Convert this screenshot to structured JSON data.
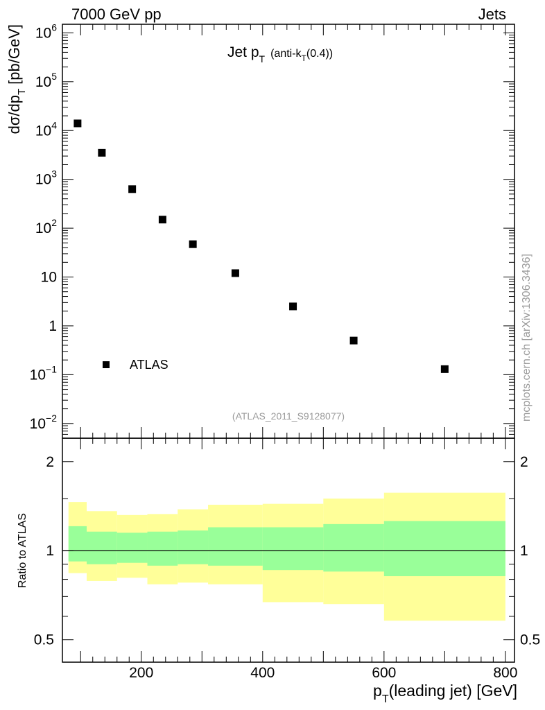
{
  "header": {
    "left": "7000 GeV pp",
    "right": "Jets"
  },
  "side_note": "mcplots.cern.ch [arXiv:1306.3436]",
  "chart_data": [
    {
      "type": "scatter",
      "title": "Jet p_T (anti-k_T(0.4))",
      "title_parts": {
        "main": "Jet p",
        "sub": "T",
        "extra": "(anti-k",
        "extra_sub": "T",
        "extra_end": "(0.4))"
      },
      "ylabel": "dσ/dp_T [pb/GeV]",
      "ylabel_parts": {
        "main": "dσ/dp",
        "sub": "T",
        "unit": "[pb/GeV]"
      },
      "yscale": "log",
      "ylim": [
        0.005,
        1500000
      ],
      "xlim": [
        70,
        815
      ],
      "y_ticks": [
        {
          "value": 1000000,
          "base": "10",
          "exp": "6"
        },
        {
          "value": 100000,
          "base": "10",
          "exp": "5"
        },
        {
          "value": 10000,
          "base": "10",
          "exp": "4"
        },
        {
          "value": 1000,
          "base": "10",
          "exp": "3"
        },
        {
          "value": 100,
          "base": "10",
          "exp": "2"
        },
        {
          "value": 10,
          "base": "10",
          "exp": ""
        },
        {
          "value": 1,
          "base": "1",
          "exp": ""
        },
        {
          "value": 0.1,
          "base": "10",
          "exp": "−1"
        },
        {
          "value": 0.01,
          "base": "10",
          "exp": "−2"
        }
      ],
      "series": [
        {
          "name": "ATLAS",
          "marker": "square",
          "color": "#000000",
          "x": [
            95,
            135,
            185,
            235,
            285,
            355,
            450,
            550,
            700
          ],
          "y": [
            14000,
            3500,
            630,
            150,
            47,
            12,
            2.5,
            0.5,
            0.13
          ]
        }
      ],
      "legend": {
        "label": "ATLAS",
        "position": "lower-left"
      },
      "annotation": "(ATLAS_2011_S9128077)"
    },
    {
      "type": "area",
      "ylabel": "Ratio to ATLAS",
      "yscale": "log",
      "ylim": [
        0.42,
        2.4
      ],
      "xlim": [
        70,
        815
      ],
      "xlabel": "p_T(leading jet) [GeV]",
      "xlabel_parts": {
        "main": "p",
        "sub": "T",
        "rest": "(leading jet) [GeV]"
      },
      "x_ticks": [
        "200",
        "400",
        "600",
        "800"
      ],
      "x_tick_values": [
        200,
        400,
        600,
        800
      ],
      "y_ticks": [
        "0.5",
        "1",
        "2"
      ],
      "y_tick_values": [
        0.5,
        1,
        2
      ],
      "reference_line": 1,
      "bins": [
        80,
        110,
        160,
        210,
        260,
        310,
        400,
        500,
        600,
        800
      ],
      "bands": [
        {
          "name": "outer",
          "color": "#ffff99",
          "low": [
            0.84,
            0.79,
            0.81,
            0.77,
            0.78,
            0.77,
            0.67,
            0.66,
            0.58
          ],
          "high": [
            1.46,
            1.36,
            1.32,
            1.33,
            1.38,
            1.43,
            1.44,
            1.5,
            1.57
          ]
        },
        {
          "name": "inner",
          "color": "#99ff99",
          "low": [
            0.92,
            0.9,
            0.91,
            0.89,
            0.9,
            0.89,
            0.86,
            0.85,
            0.82
          ],
          "high": [
            1.21,
            1.16,
            1.15,
            1.16,
            1.17,
            1.2,
            1.2,
            1.23,
            1.26
          ]
        }
      ]
    }
  ]
}
